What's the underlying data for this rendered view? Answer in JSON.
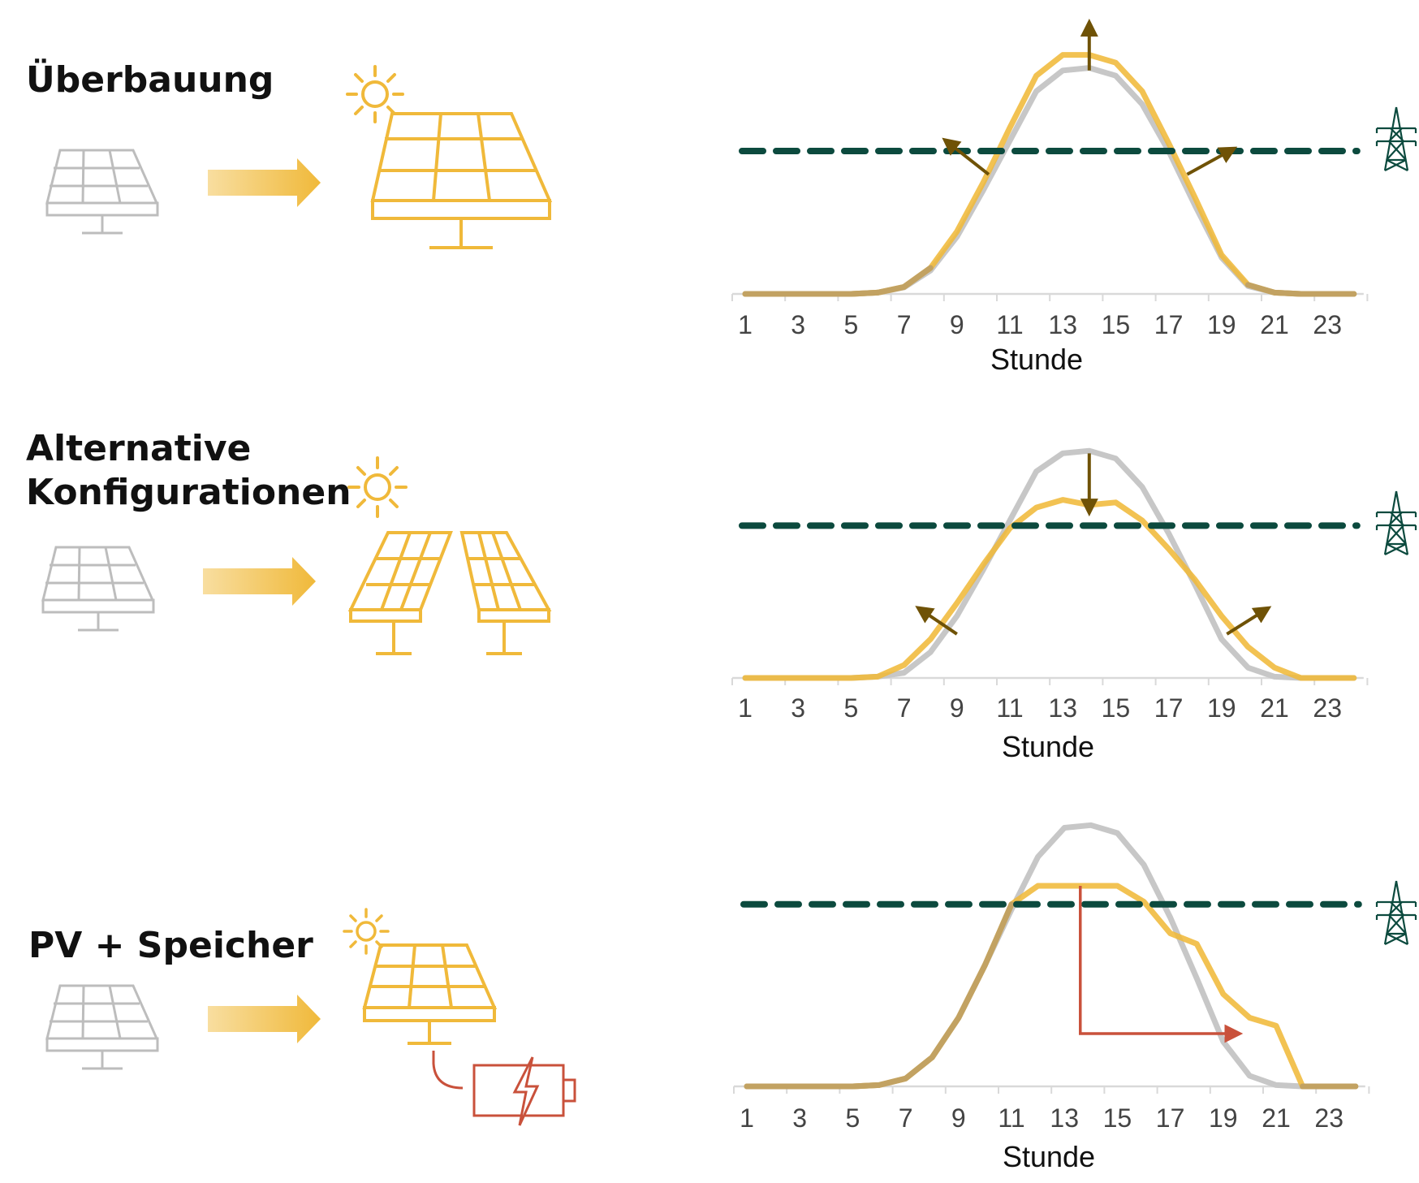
{
  "rows": [
    {
      "title_lines": [
        "Überbauung"
      ],
      "config": "oversize"
    },
    {
      "title_lines": [
        "Alternative",
        "Konfigurationen"
      ],
      "config": "alternative"
    },
    {
      "title_lines": [
        "PV + Speicher"
      ],
      "config": "storage"
    }
  ],
  "icons": {
    "existing_panel": "solar-panel-icon",
    "upgrade_arrow": "gradient-arrow-icon",
    "sun": "sun-icon",
    "pylon": "transmission-tower-icon",
    "battery": "battery-charging-icon"
  },
  "colors": {
    "baseline": "#c7c7c7",
    "scenario": "#f0b93a",
    "overlap": "#c2a262",
    "grid_limit": "#0c4a3e",
    "shift_arrows": "#6f5206",
    "storage_shift": "#c9513b",
    "text": "#111111"
  },
  "chart_data": [
    {
      "type": "line",
      "title": "",
      "xlabel": "Stunde",
      "ylabel": "",
      "x": [
        1,
        2,
        3,
        4,
        5,
        6,
        7,
        8,
        9,
        10,
        11,
        12,
        13,
        14,
        15,
        16,
        17,
        18,
        19,
        20,
        21,
        22,
        23,
        24
      ],
      "xticks": [
        "1",
        "3",
        "5",
        "7",
        "9",
        "11",
        "13",
        "15",
        "17",
        "19",
        "21",
        "23"
      ],
      "ylim": [
        0,
        100
      ],
      "grid_limit": 55,
      "series": [
        {
          "role": "baseline",
          "values": [
            0,
            0,
            0,
            0,
            0,
            0.5,
            2.5,
            9,
            22,
            40,
            59,
            78,
            86,
            87,
            84,
            73,
            55,
            34,
            14,
            3,
            0.5,
            0,
            0,
            0
          ]
        },
        {
          "role": "scenario",
          "values": [
            0,
            0,
            0,
            0,
            0,
            0.5,
            2.7,
            10,
            24,
            43,
            64,
            84,
            92,
            92,
            89,
            78,
            58,
            37,
            15,
            3.5,
            0.5,
            0,
            0,
            0
          ]
        }
      ]
    },
    {
      "type": "line",
      "title": "",
      "xlabel": "Stunde",
      "ylabel": "",
      "x": [
        1,
        2,
        3,
        4,
        5,
        6,
        7,
        8,
        9,
        10,
        11,
        12,
        13,
        14,
        15,
        16,
        17,
        18,
        19,
        20,
        21,
        22,
        23,
        24
      ],
      "xticks": [
        "1",
        "3",
        "5",
        "7",
        "9",
        "11",
        "13",
        "15",
        "17",
        "19",
        "21",
        "23"
      ],
      "ylim": [
        0,
        100
      ],
      "grid_limit": 59,
      "series": [
        {
          "role": "baseline",
          "values": [
            0,
            0,
            0,
            0,
            0,
            0.5,
            2,
            10,
            24,
            42,
            61,
            80,
            87,
            88,
            85,
            74,
            56,
            36,
            15,
            4,
            0.5,
            0,
            0,
            0
          ]
        },
        {
          "role": "scenario",
          "values": [
            0,
            0,
            0,
            0,
            0,
            0.5,
            5,
            15,
            29,
            44,
            58,
            66,
            69,
            67,
            68,
            61,
            50,
            38,
            24,
            12,
            4,
            0,
            0,
            0
          ]
        }
      ]
    },
    {
      "type": "line",
      "title": "",
      "xlabel": "Stunde",
      "ylabel": "",
      "x": [
        1,
        2,
        3,
        4,
        5,
        6,
        7,
        8,
        9,
        10,
        11,
        12,
        13,
        14,
        15,
        16,
        17,
        18,
        19,
        20,
        21,
        22,
        23,
        24
      ],
      "xticks": [
        "1",
        "3",
        "5",
        "7",
        "9",
        "11",
        "13",
        "15",
        "17",
        "19",
        "21",
        "23"
      ],
      "ylim": [
        0,
        100
      ],
      "grid_limit": 69,
      "series": [
        {
          "role": "baseline",
          "values": [
            0,
            0,
            0,
            0,
            0,
            0.5,
            3,
            11,
            26,
            46,
            67,
            87,
            98,
            99,
            96,
            84,
            64,
            41,
            17,
            4,
            0.5,
            0,
            0,
            0
          ]
        },
        {
          "role": "scenario",
          "values": [
            0,
            0,
            0,
            0,
            0,
            0.5,
            3,
            11,
            26,
            46,
            69,
            76,
            76,
            76,
            76,
            70,
            58,
            54,
            35,
            26,
            23,
            0,
            0,
            0
          ]
        }
      ]
    }
  ]
}
